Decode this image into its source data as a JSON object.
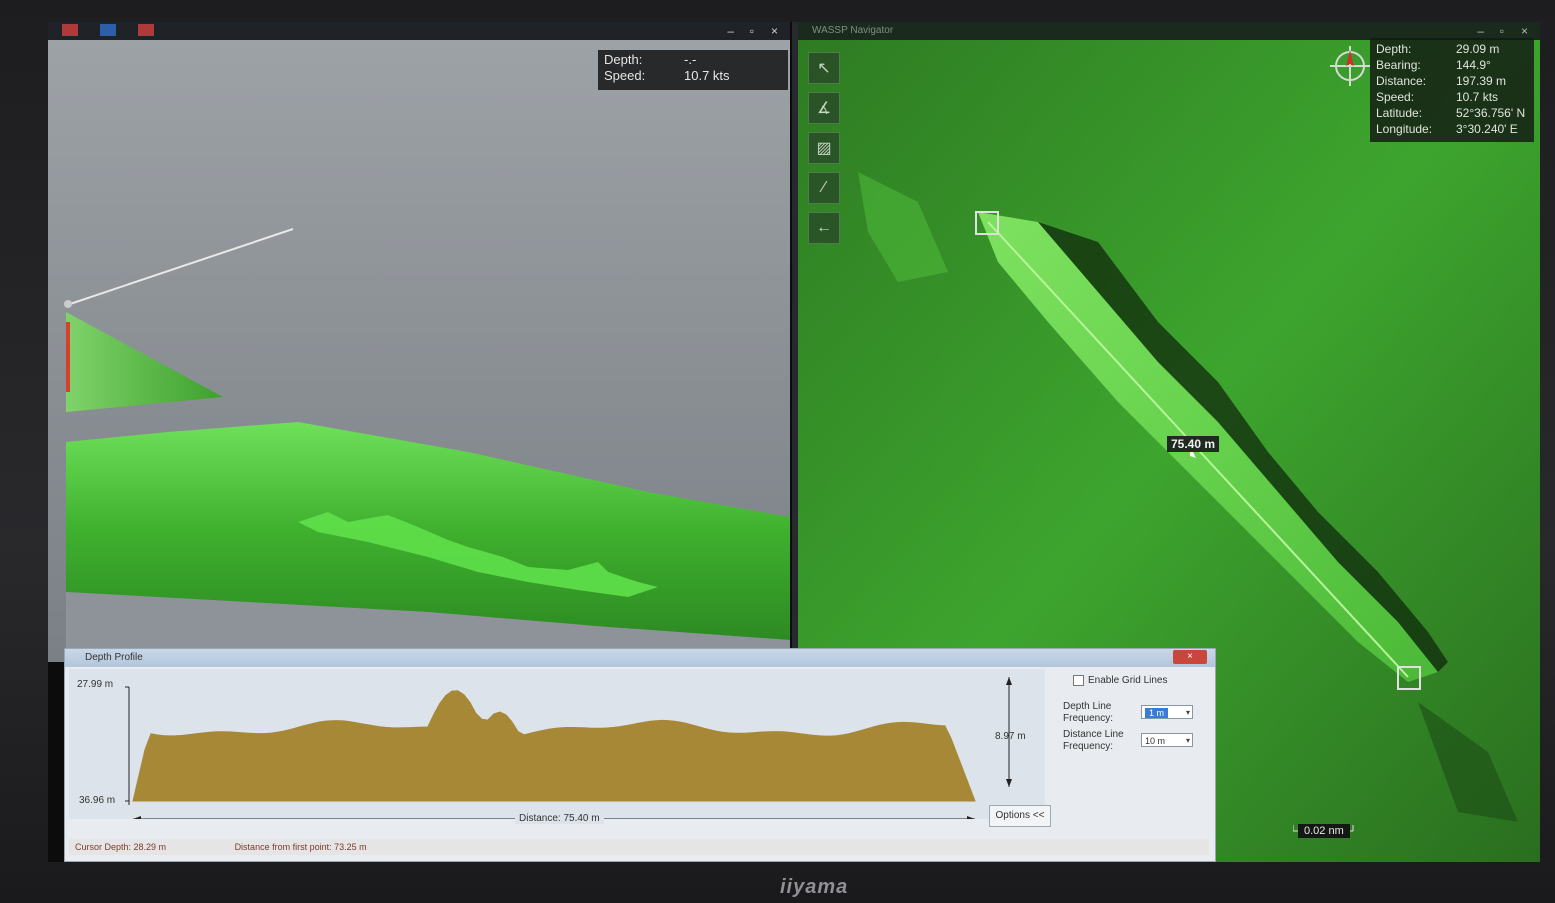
{
  "view3d": {
    "info": {
      "depth_label": "Depth:",
      "depth_value": "-.-",
      "speed_label": "Speed:",
      "speed_value": "10.7 kts"
    },
    "controls": {
      "minimize": "–",
      "maximize": "▫",
      "close": "×"
    }
  },
  "nav2d": {
    "title": "WASSP Navigator",
    "controls": {
      "minimize": "–",
      "maximize": "▫",
      "close": "×"
    },
    "toolbar": [
      {
        "name": "view-tool-button",
        "glyph": "↖"
      },
      {
        "name": "measure-tool-button",
        "glyph": "∡"
      },
      {
        "name": "profile-tool-button",
        "glyph": "▨"
      },
      {
        "name": "line-tool-button",
        "glyph": "∕"
      },
      {
        "name": "back-button",
        "glyph": "←"
      }
    ],
    "info": [
      {
        "label": "Depth:",
        "value": "29.09 m"
      },
      {
        "label": "Bearing:",
        "value": "144.9°"
      },
      {
        "label": "Distance:",
        "value": "197.39 m"
      },
      {
        "label": "Speed:",
        "value": "10.7 kts"
      },
      {
        "label": "Latitude:",
        "value": "52°36.756' N"
      },
      {
        "label": "Longitude:",
        "value": "3°30.240' E"
      }
    ],
    "measure_label": "75.40 m",
    "scale_label": "0.02 nm"
  },
  "depth_profile": {
    "title": "Depth Profile",
    "top_depth": "27.99 m",
    "bottom_depth": "36.96 m",
    "range": "8.97 m",
    "distance": "Distance: 75.40 m",
    "options_button": "Options <<",
    "enable_grid_label": "Enable Grid Lines",
    "depth_line_label": "Depth Line Frequency:",
    "depth_line_value": "1 m",
    "distance_line_label": "Distance Line Frequency:",
    "distance_line_value": "10 m",
    "cursor_depth": "Cursor Depth: 28.29 m",
    "distance_from_first": "Distance from first point: 73.25 m",
    "fill_color": "#a78837",
    "background_color": "#dce3ea"
  },
  "monitor": {
    "brand": "iiyama"
  },
  "colors": {
    "seafloor": "#3fbf2e",
    "seafloor_dark": "#1e5a18",
    "panel_bg": "#1a1d21"
  }
}
